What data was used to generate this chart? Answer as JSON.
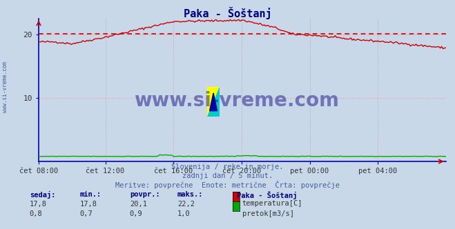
{
  "title": "Paka - Šoštanj",
  "title_color": "#000080",
  "bg_color": "#c8d8e8",
  "plot_bg_color": "#c8d8e8",
  "grid_color_h": "#ff8080",
  "grid_color_v": "#c0a0b0",
  "axis_color": "#0000cc",
  "x_labels": [
    "čet 08:00",
    "čet 12:00",
    "čet 16:00",
    "čet 20:00",
    "pet 00:00",
    "pet 04:00"
  ],
  "x_ticks_norm": [
    0.0,
    0.1667,
    0.3333,
    0.5,
    0.6667,
    0.8333
  ],
  "n_points": 288,
  "ylim": [
    0,
    22.5
  ],
  "yticks": [
    10,
    20
  ],
  "temp_color": "#cc0000",
  "flow_color": "#00aa00",
  "avg_color": "#cc0000",
  "dashed_avg": 20.1,
  "watermark": "www.si-vreme.com",
  "watermark_color": "#000080",
  "subtitle1": "Slovenija / reke in morje.",
  "subtitle2": "zadnji dan / 5 minut.",
  "subtitle3": "Meritve: povprečne  Enote: metrične  Črta: povprečje",
  "subtitle_color": "#4060a0",
  "legend_title": "Paka - Šoštanj",
  "legend_title_color": "#000080",
  "label_color": "#000080",
  "stats_labels": [
    "sedaj:",
    "min.:",
    "povpr.:",
    "maks.:"
  ],
  "temp_stats": [
    17.8,
    17.8,
    20.1,
    22.2
  ],
  "flow_stats": [
    0.8,
    0.7,
    0.9,
    1.0
  ],
  "temp_label": "temperatura[C]",
  "flow_label": "pretok[m3/s]",
  "sidebar_text": "www.si-vreme.com",
  "sidebar_color": "#4060a0"
}
